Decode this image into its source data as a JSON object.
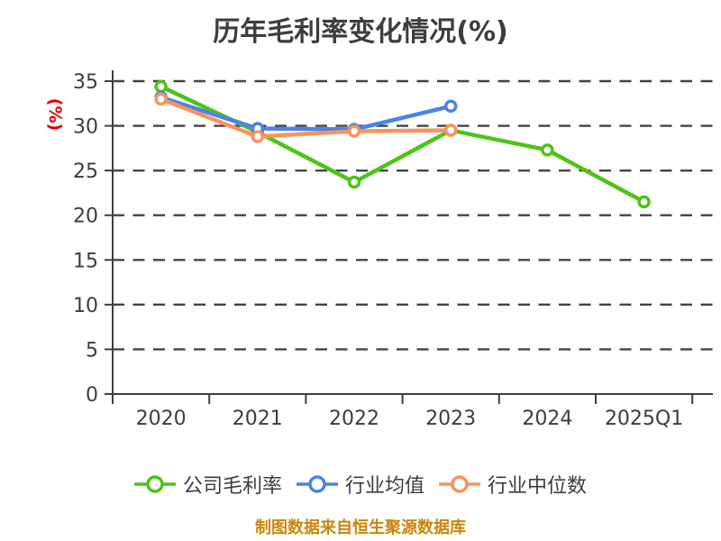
{
  "title": "历年毛利率变化情况(%)",
  "y_axis_label": "(%)",
  "footer": "制图数据来自恒生聚源数据库",
  "colors": {
    "title_text": "#3d3d3d",
    "tick_text": "#3d3d3d",
    "axis": "#3f3f3f",
    "grid": "#434343",
    "y_label": "#e60000",
    "footer_text": "#c8870b",
    "marker_fill": "#ffffff"
  },
  "chart_data": {
    "type": "line",
    "title": "历年毛利率变化情况(%)",
    "ylabel": "(%)",
    "categories": [
      "2020",
      "2021",
      "2022",
      "2023",
      "2024",
      "2025Q1"
    ],
    "series": [
      {
        "name": "公司毛利率",
        "slug": "company-gross-margin",
        "color": "#4dc319",
        "values": [
          34.4,
          29.3,
          23.7,
          29.5,
          27.3,
          21.5
        ]
      },
      {
        "name": "行业均值",
        "slug": "industry-average",
        "color": "#4e82e4",
        "values": [
          33.2,
          29.7,
          29.6,
          32.2,
          null,
          null
        ]
      },
      {
        "name": "行业中位数",
        "slug": "industry-median",
        "color": "#f6935f",
        "values": [
          33.0,
          28.8,
          29.4,
          29.5,
          null,
          null
        ]
      }
    ],
    "ylim": [
      0,
      35
    ],
    "yticks": [
      0,
      5,
      10,
      15,
      20,
      25,
      30,
      35
    ],
    "grid": "horizontal-dashed",
    "legend_position": "bottom"
  }
}
